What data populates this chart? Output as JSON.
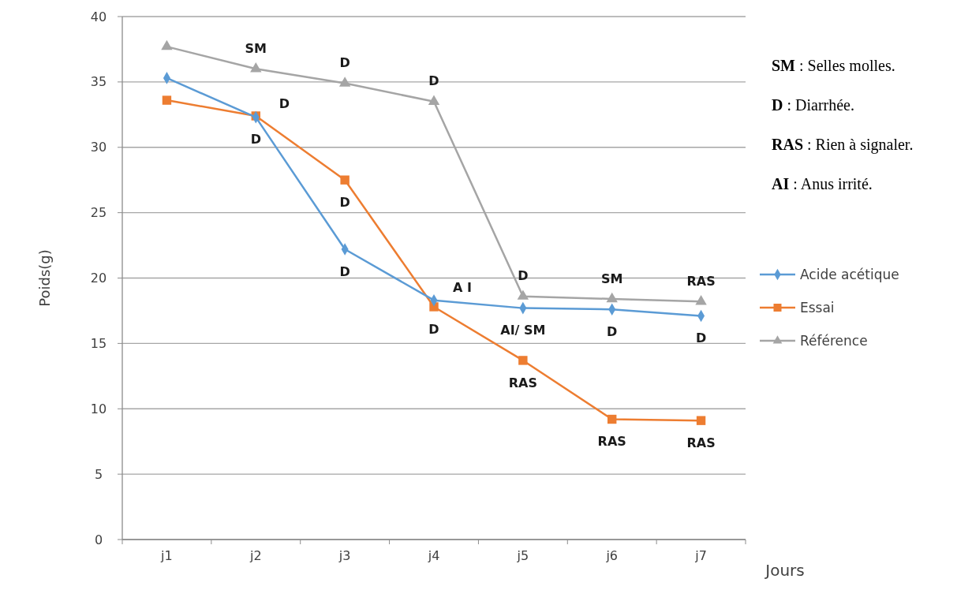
{
  "chart_data": {
    "type": "line",
    "xlabel": "Jours",
    "ylabel": "Poids(g)",
    "categories": [
      "j1",
      "j2",
      "j3",
      "j4",
      "j5",
      "j6",
      "j7"
    ],
    "series": [
      {
        "name": "Acide acétique",
        "color": "#5b9bd5",
        "marker": "diamond",
        "values": [
          35.3,
          32.3,
          22.2,
          18.3,
          17.7,
          17.6,
          17.1
        ]
      },
      {
        "name": "Essai",
        "color": "#ed7d31",
        "marker": "square",
        "values": [
          33.6,
          32.4,
          27.5,
          17.8,
          13.7,
          9.2,
          9.1
        ]
      },
      {
        "name": "Référence",
        "color": "#a5a5a5",
        "marker": "triangle",
        "values": [
          37.7,
          36.0,
          34.9,
          33.5,
          18.6,
          18.4,
          18.2
        ]
      }
    ],
    "ylim": [
      0,
      40
    ],
    "yticks": [
      0,
      5,
      10,
      15,
      20,
      25,
      30,
      35,
      40
    ],
    "grid": "y",
    "legend": "right",
    "annotations": [
      {
        "text": "SM",
        "x": "j2",
        "y": 36.0
      },
      {
        "text": "D",
        "x": "j3",
        "y": 34.9
      },
      {
        "text": "D",
        "x": "j4",
        "y": 33.5
      },
      {
        "text": "D",
        "x": "j2",
        "y": 32.4
      },
      {
        "text": "D",
        "x": "j2",
        "y": 32.3
      },
      {
        "text": "D",
        "x": "j3",
        "y": 27.5
      },
      {
        "text": "D",
        "x": "j3",
        "y": 22.2
      },
      {
        "text": "A I",
        "x": "j4",
        "y": 18.3
      },
      {
        "text": "D",
        "x": "j4",
        "y": 17.8
      },
      {
        "text": "D",
        "x": "j5",
        "y": 18.6
      },
      {
        "text": "AI/ SM",
        "x": "j5",
        "y": 17.7
      },
      {
        "text": "RAS",
        "x": "j5",
        "y": 13.7
      },
      {
        "text": "SM",
        "x": "j6",
        "y": 18.4
      },
      {
        "text": "D",
        "x": "j6",
        "y": 17.6
      },
      {
        "text": "RAS",
        "x": "j6",
        "y": 9.2
      },
      {
        "text": "RAS",
        "x": "j7",
        "y": 18.2
      },
      {
        "text": "D",
        "x": "j7",
        "y": 17.1
      },
      {
        "text": "RAS",
        "x": "j7",
        "y": 9.1
      },
      "SM : Selles molles.",
      "D : Diarrhée.",
      "RAS : Rien à signaler.",
      "AI : Anus irrité."
    ]
  }
}
